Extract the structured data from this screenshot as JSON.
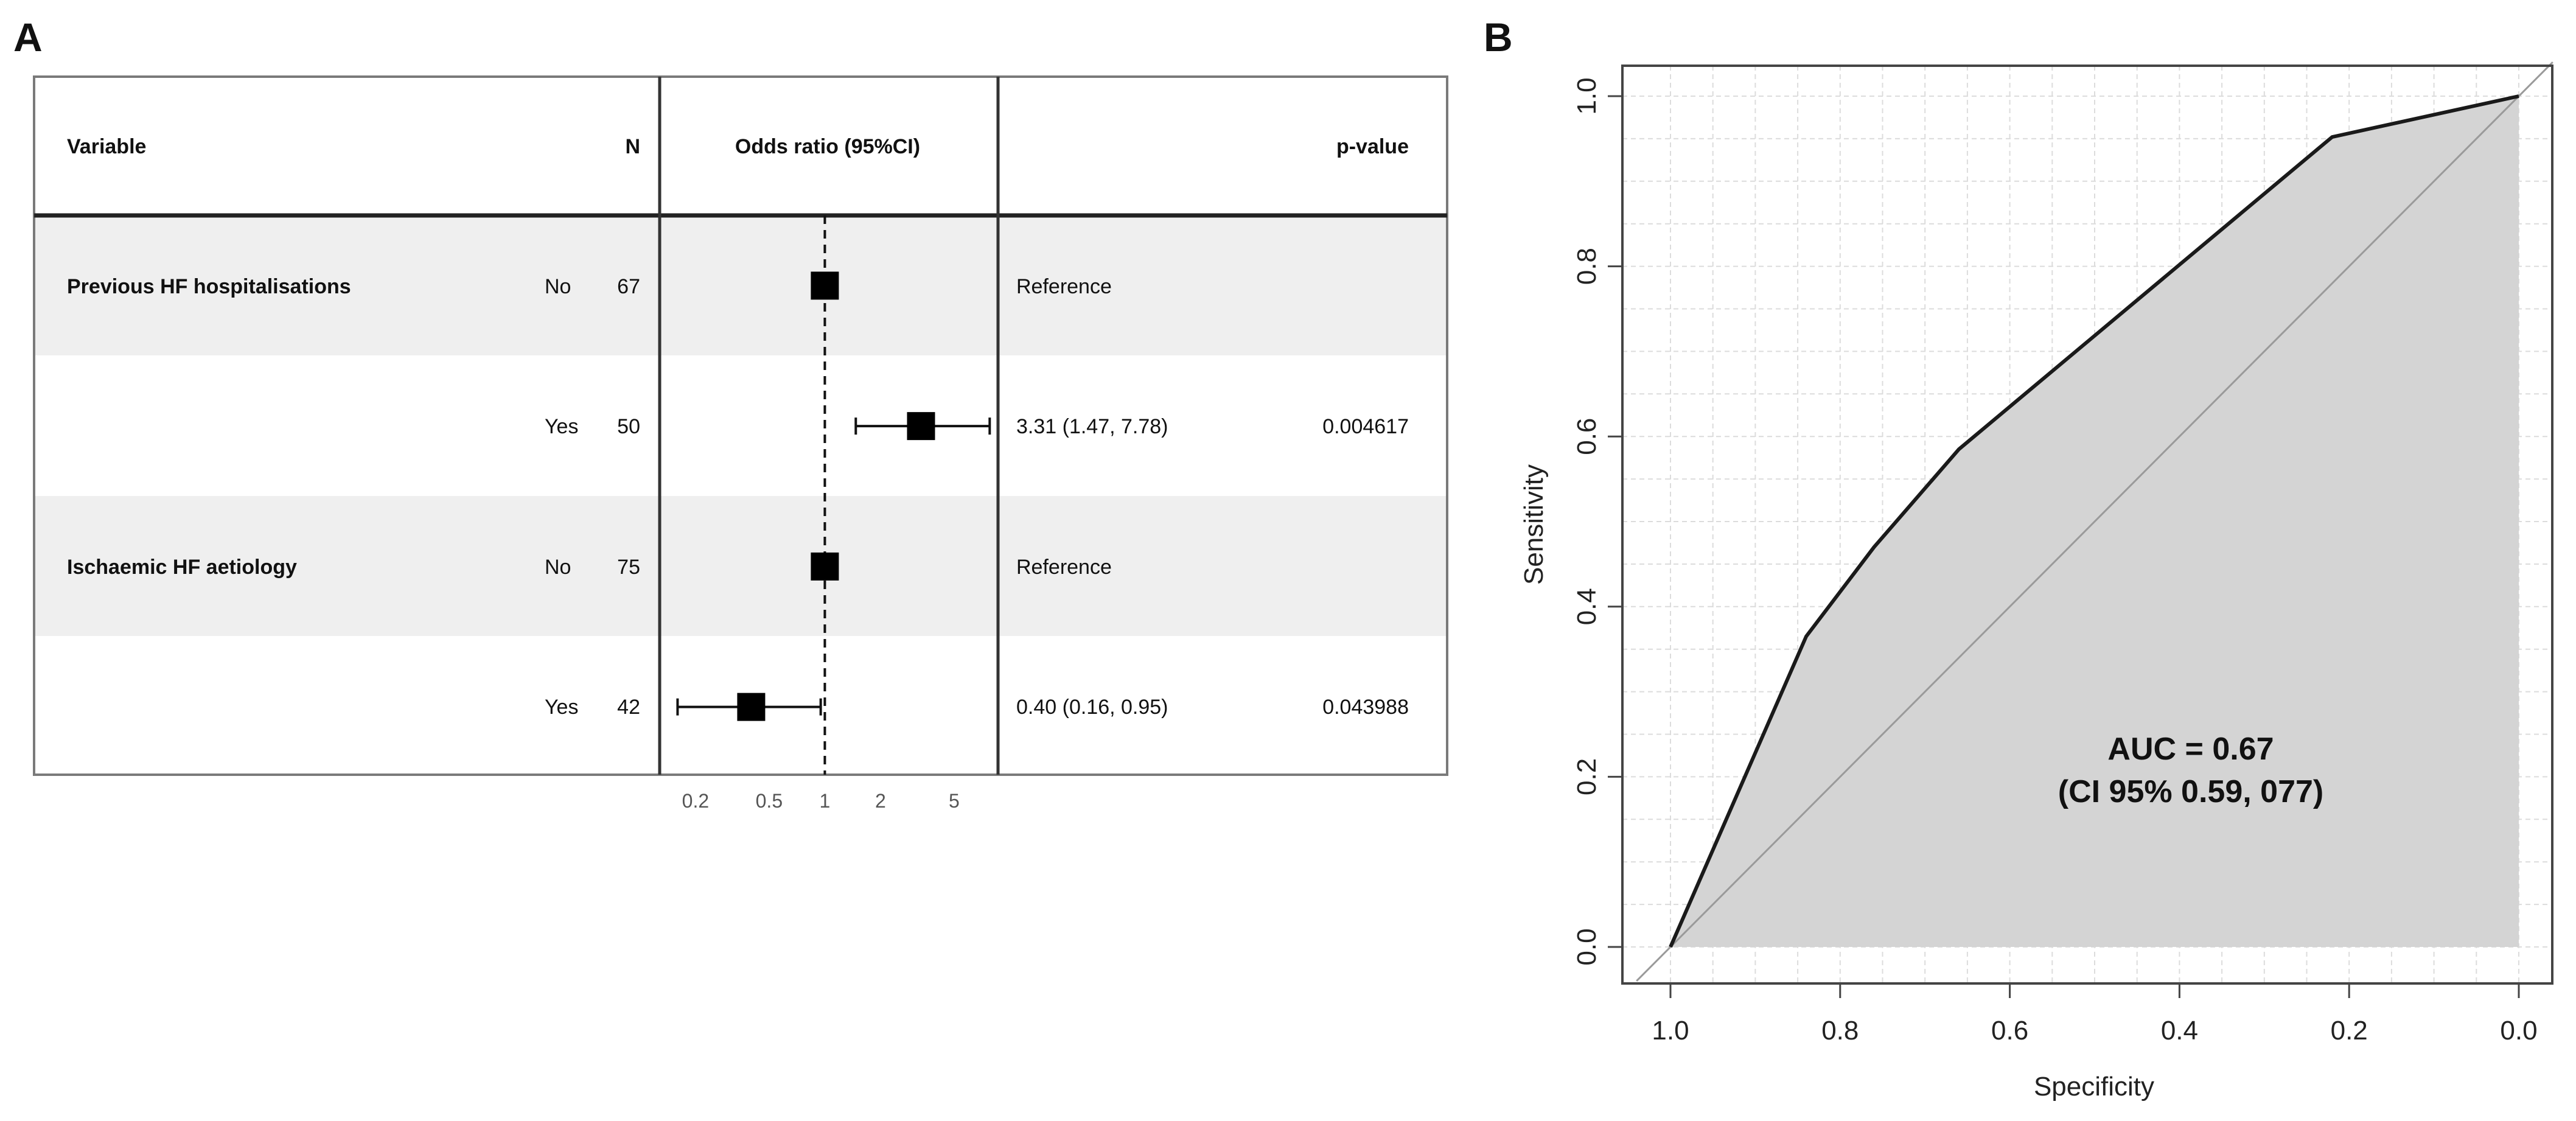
{
  "panel_a_label": "A",
  "panel_b_label": "B",
  "chart_data": [
    {
      "type": "forest",
      "headers": {
        "variable": "Variable",
        "n": "N",
        "or": "Odds ratio (95%CI)",
        "p": "p-value"
      },
      "rows": [
        {
          "variable": "Previous HF hospitalisations",
          "level": "No",
          "n": "67",
          "or": 1.0,
          "lo": null,
          "hi": null,
          "or_text": "Reference",
          "p": ""
        },
        {
          "variable": "",
          "level": "Yes",
          "n": "50",
          "or": 3.31,
          "lo": 1.47,
          "hi": 7.78,
          "or_text": "3.31 (1.47, 7.78)",
          "p": "0.004617"
        },
        {
          "variable": "Ischaemic HF aetiology",
          "level": "No",
          "n": "75",
          "or": 1.0,
          "lo": null,
          "hi": null,
          "or_text": "Reference",
          "p": ""
        },
        {
          "variable": "",
          "level": "Yes",
          "n": "42",
          "or": 0.4,
          "lo": 0.16,
          "hi": 0.95,
          "or_text": "0.40 (0.16, 0.95)",
          "p": "0.043988"
        }
      ],
      "x_scale": "log",
      "xlim": [
        0.13,
        8.5
      ],
      "ticks": [
        0.2,
        0.5,
        1,
        2,
        5
      ],
      "tick_labels": [
        "0.2",
        "0.5",
        "1",
        "2",
        "5"
      ],
      "reference_line": 1
    },
    {
      "type": "line",
      "subtype": "roc",
      "xlabel": "Specificity",
      "ylabel": "Sensitivity",
      "xlim": [
        1.0,
        0.0
      ],
      "ylim": [
        0.0,
        1.0
      ],
      "x_ticks": [
        1.0,
        0.8,
        0.6,
        0.4,
        0.2,
        0.0
      ],
      "x_tick_labels": [
        "1.0",
        "0.8",
        "0.6",
        "0.4",
        "0.2",
        "0.0"
      ],
      "y_ticks": [
        0.0,
        0.2,
        0.4,
        0.6,
        0.8,
        1.0
      ],
      "y_tick_labels": [
        "0.0",
        "0.2",
        "0.4",
        "0.6",
        "0.8",
        "1.0"
      ],
      "grid": true,
      "specificity": [
        1.0,
        0.84,
        0.76,
        0.66,
        0.22,
        0.0
      ],
      "sensitivity": [
        0.0,
        0.365,
        0.47,
        0.585,
        0.952,
        1.0
      ],
      "auc_text": "AUC = 0.67",
      "ci_text": "(CI 95% 0.59, 077)"
    }
  ],
  "colors": {
    "row_shade": "#efefef",
    "roc_fill": "#d4d4d4",
    "grid": "#dcdcdc",
    "diagonal": "#9a9a9a",
    "frame": "#444444"
  }
}
